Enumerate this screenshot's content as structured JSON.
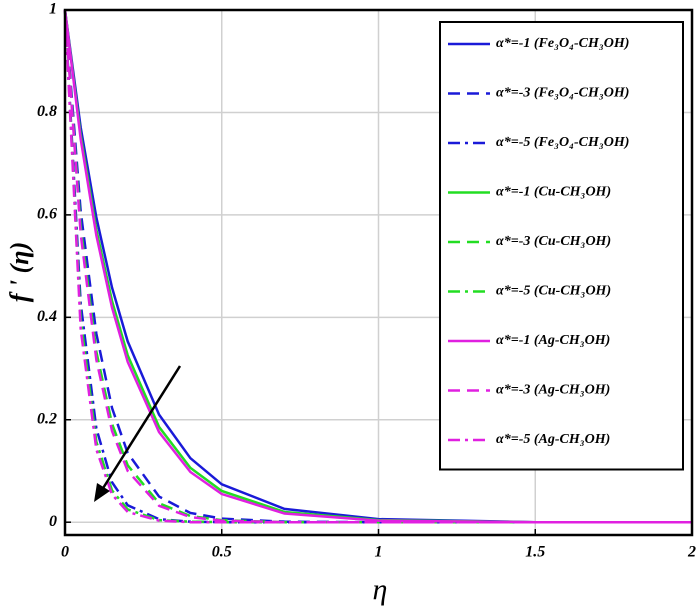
{
  "chart_data": {
    "type": "line",
    "x_label": "η",
    "y_label": "f ' (η)",
    "x": [
      0,
      0.05,
      0.1,
      0.15,
      0.2,
      0.3,
      0.4,
      0.5,
      0.7,
      1,
      1.5,
      2
    ],
    "xlim": [
      0,
      2
    ],
    "xticks": [
      0,
      0.5,
      1,
      1.5,
      2
    ],
    "ylim": [
      -0.025,
      1
    ],
    "yticks": [
      0,
      0.2,
      0.4,
      0.6,
      0.8,
      1
    ],
    "grid": true,
    "legend": "upper right",
    "series": [
      {
        "name": "α*=-1 (Fe₃O₄-CH₃OH)",
        "color": "#1a1ad8",
        "style": "solid",
        "values": [
          1,
          0.771,
          0.595,
          0.458,
          0.353,
          0.21,
          0.125,
          0.074,
          0.026,
          0.006,
          0,
          0
        ]
      },
      {
        "name": "α*=-3 (Fe₃O₄-CH₃OH)",
        "color": "#1a1ad8",
        "style": "dashed",
        "values": [
          1,
          0.607,
          0.368,
          0.223,
          0.135,
          0.05,
          0.018,
          0.007,
          0.001,
          0,
          0,
          0
        ]
      },
      {
        "name": "α*=-5 (Fe₃O₄-CH₃OH)",
        "color": "#1a1ad8",
        "style": "dashdot",
        "values": [
          1,
          0.427,
          0.183,
          0.078,
          0.033,
          0.006,
          0.001,
          0,
          0,
          0,
          0,
          0
        ]
      },
      {
        "name": "α*=-1 (Cu-CH₃OH)",
        "color": "#22dd22",
        "style": "solid",
        "values": [
          1,
          0.756,
          0.571,
          0.432,
          0.326,
          0.186,
          0.106,
          0.061,
          0.02,
          0.004,
          0,
          0
        ]
      },
      {
        "name": "α*=-3 (Cu-CH₃OH)",
        "color": "#22dd22",
        "style": "dashed",
        "values": [
          1,
          0.577,
          0.333,
          0.192,
          0.111,
          0.037,
          0.012,
          0.004,
          0,
          0,
          0,
          0
        ]
      },
      {
        "name": "α*=-5 (Cu-CH₃OH)",
        "color": "#22dd22",
        "style": "dashdot",
        "values": [
          1,
          0.397,
          0.157,
          0.062,
          0.025,
          0.004,
          0.001,
          0,
          0,
          0,
          0,
          0
        ]
      },
      {
        "name": "α*=-1 (Ag-CH₃OH)",
        "color": "#e020e0",
        "style": "solid",
        "values": [
          1,
          0.748,
          0.56,
          0.419,
          0.313,
          0.176,
          0.098,
          0.055,
          0.017,
          0.003,
          0,
          0
        ]
      },
      {
        "name": "α*=-3 (Ag-CH₃OH)",
        "color": "#e020e0",
        "style": "dashed",
        "values": [
          1,
          0.563,
          0.317,
          0.178,
          0.1,
          0.032,
          0.01,
          0.003,
          0,
          0,
          0,
          0
        ]
      },
      {
        "name": "α*=-5 (Ag-CH₃OH)",
        "color": "#e020e0",
        "style": "dashdot",
        "values": [
          1,
          0.377,
          0.142,
          0.054,
          0.02,
          0.003,
          0,
          0,
          0,
          0,
          0,
          0
        ]
      }
    ]
  }
}
